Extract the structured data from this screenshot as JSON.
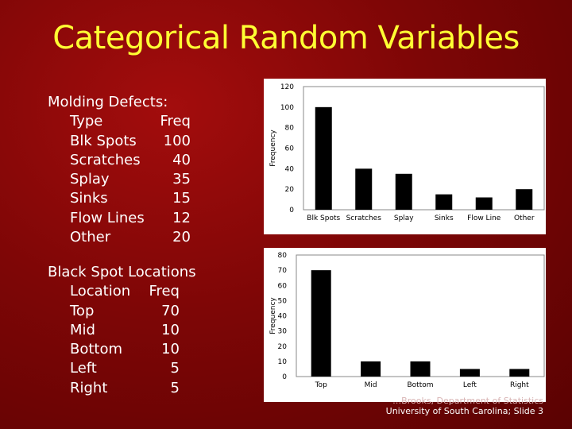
{
  "slide": {
    "title": "Categorical Random Variables",
    "footer_line1": "…Brooks, Department of Statistics",
    "footer_line2": "University of South Carolina; Slide 3"
  },
  "molding": {
    "heading": "Molding Defects:",
    "col1_header": "Type",
    "col2_header": "Freq",
    "rows": [
      {
        "type": "Blk Spots",
        "freq": "100"
      },
      {
        "type": "Scratches",
        "freq": "40"
      },
      {
        "type": "Splay",
        "freq": "35"
      },
      {
        "type": "Sinks",
        "freq": "15"
      },
      {
        "type": "Flow Lines",
        "freq": "12"
      },
      {
        "type": "Other",
        "freq": "20"
      }
    ]
  },
  "blackspot": {
    "heading": "Black Spot Locations",
    "col1_header": "Location",
    "col2_header": "Freq",
    "rows": [
      {
        "type": "Top",
        "freq": "70"
      },
      {
        "type": "Mid",
        "freq": "10"
      },
      {
        "type": "Bottom",
        "freq": "10"
      },
      {
        "type": "Left",
        "freq": "5"
      },
      {
        "type": "Right",
        "freq": "5"
      }
    ]
  },
  "colors": {
    "background": "#7e0606",
    "title": "#ffff33",
    "text": "#ffffff",
    "bar": "#000000"
  },
  "chart_data": [
    {
      "type": "bar",
      "categories": [
        "Blk Spots",
        "Scratches",
        "Splay",
        "Sinks",
        "Flow Line",
        "Other"
      ],
      "values": [
        100,
        40,
        35,
        15,
        12,
        20
      ],
      "ylabel": "Frequency",
      "ylim": [
        0,
        120
      ],
      "yticks": [
        0,
        20,
        40,
        60,
        80,
        100,
        120
      ],
      "grid": false
    },
    {
      "type": "bar",
      "categories": [
        "Top",
        "Mid",
        "Bottom",
        "Left",
        "Right"
      ],
      "values": [
        70,
        10,
        10,
        5,
        5
      ],
      "ylabel": "Frequency",
      "ylim": [
        0,
        80
      ],
      "yticks": [
        0,
        10,
        20,
        30,
        40,
        50,
        60,
        70,
        80
      ],
      "grid": false
    }
  ]
}
